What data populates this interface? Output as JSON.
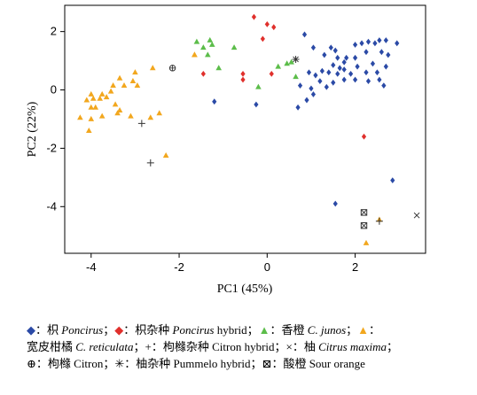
{
  "chart_data": {
    "type": "scatter",
    "xlabel": "PC1 (45%)",
    "ylabel": "PC2 (22%)",
    "xlim": [
      -4.6,
      3.6
    ],
    "ylim": [
      -5.6,
      2.9
    ],
    "xticks": [
      -4,
      -2,
      0,
      2
    ],
    "yticks": [
      -4,
      -2,
      0,
      2
    ],
    "xtick_labels": [
      "-4",
      "-2",
      "0",
      "2"
    ],
    "ytick_labels": [
      "-4",
      "-2",
      "0",
      "2"
    ],
    "grid": false,
    "series": [
      {
        "name": "枳 Poncirus",
        "marker": "diamond",
        "color": "#2b4aa6",
        "points": [
          [
            0.85,
            1.9
          ],
          [
            1.05,
            1.45
          ],
          [
            1.45,
            1.45
          ],
          [
            1.55,
            1.35
          ],
          [
            1.3,
            1.2
          ],
          [
            1.6,
            1.1
          ],
          [
            1.75,
            0.95
          ],
          [
            1.8,
            1.1
          ],
          [
            1.5,
            0.85
          ],
          [
            1.65,
            0.75
          ],
          [
            2.0,
            1.55
          ],
          [
            2.15,
            1.6
          ],
          [
            2.3,
            1.65
          ],
          [
            2.45,
            1.6
          ],
          [
            2.55,
            1.7
          ],
          [
            2.7,
            1.7
          ],
          [
            2.95,
            1.6
          ],
          [
            2.25,
            1.3
          ],
          [
            2.6,
            1.3
          ],
          [
            2.75,
            1.2
          ],
          [
            2.0,
            1.1
          ],
          [
            2.05,
            0.8
          ],
          [
            1.75,
            0.7
          ],
          [
            2.4,
            0.9
          ],
          [
            2.7,
            0.8
          ],
          [
            2.5,
            0.6
          ],
          [
            2.25,
            0.6
          ],
          [
            1.9,
            0.55
          ],
          [
            1.6,
            0.55
          ],
          [
            1.4,
            0.6
          ],
          [
            1.25,
            0.65
          ],
          [
            1.1,
            0.5
          ],
          [
            0.95,
            0.6
          ],
          [
            1.2,
            0.3
          ],
          [
            1.5,
            0.25
          ],
          [
            1.75,
            0.35
          ],
          [
            2.0,
            0.35
          ],
          [
            2.3,
            0.3
          ],
          [
            2.55,
            0.35
          ],
          [
            2.65,
            0.15
          ],
          [
            1.0,
            0.05
          ],
          [
            0.75,
            0.15
          ],
          [
            1.05,
            -0.15
          ],
          [
            0.9,
            -0.35
          ],
          [
            0.7,
            -0.6
          ],
          [
            1.35,
            0.1
          ],
          [
            -1.2,
            -0.4
          ],
          [
            -0.25,
            -0.5
          ],
          [
            2.85,
            -3.1
          ],
          [
            1.55,
            -3.9
          ]
        ]
      },
      {
        "name": "枳杂种 Poncirus hybrid",
        "marker": "diamond",
        "color": "#e0302c",
        "points": [
          [
            -0.3,
            2.5
          ],
          [
            0.0,
            2.25
          ],
          [
            0.15,
            2.15
          ],
          [
            -0.1,
            1.75
          ],
          [
            -1.45,
            0.55
          ],
          [
            -0.55,
            0.55
          ],
          [
            -0.55,
            0.35
          ],
          [
            0.1,
            0.55
          ],
          [
            2.2,
            -1.6
          ]
        ]
      },
      {
        "name": "香橙 C. junos",
        "marker": "triangle",
        "color": "#5cbd4a",
        "points": [
          [
            -1.6,
            1.65
          ],
          [
            -1.3,
            1.7
          ],
          [
            -1.25,
            1.55
          ],
          [
            -0.75,
            1.45
          ],
          [
            -1.45,
            1.45
          ],
          [
            -1.35,
            1.2
          ],
          [
            -1.1,
            0.75
          ],
          [
            0.45,
            0.9
          ],
          [
            0.55,
            0.95
          ],
          [
            0.25,
            0.8
          ],
          [
            -0.2,
            0.1
          ],
          [
            0.65,
            0.45
          ]
        ]
      },
      {
        "name": "宽皮柑橘 C. reticulata",
        "marker": "triangle",
        "color": "#f2a71e",
        "points": [
          [
            -2.6,
            0.75
          ],
          [
            -3.0,
            0.6
          ],
          [
            -3.05,
            0.3
          ],
          [
            -2.95,
            0.15
          ],
          [
            -3.35,
            0.4
          ],
          [
            -3.25,
            0.15
          ],
          [
            -3.5,
            0.15
          ],
          [
            -3.55,
            -0.05
          ],
          [
            -3.75,
            -0.15
          ],
          [
            -3.8,
            -0.3
          ],
          [
            -3.65,
            -0.25
          ],
          [
            -3.95,
            -0.3
          ],
          [
            -4.0,
            -0.15
          ],
          [
            -4.1,
            -0.35
          ],
          [
            -3.9,
            -0.6
          ],
          [
            -3.45,
            -0.5
          ],
          [
            -3.4,
            -0.8
          ],
          [
            -3.35,
            -0.7
          ],
          [
            -3.1,
            -0.9
          ],
          [
            -3.75,
            -0.9
          ],
          [
            -4.0,
            -0.6
          ],
          [
            -4.25,
            -0.95
          ],
          [
            -4.0,
            -1.0
          ],
          [
            -2.45,
            -0.8
          ],
          [
            -2.65,
            -0.95
          ],
          [
            -4.05,
            -1.4
          ],
          [
            -1.65,
            1.2
          ],
          [
            -1.65,
            1.2
          ],
          [
            -2.3,
            -2.25
          ],
          [
            2.25,
            -5.25
          ],
          [
            2.55,
            -4.45
          ]
        ]
      },
      {
        "name": "枸橼杂种 Citron hybrid",
        "marker": "plus",
        "color": "#333333",
        "points": [
          [
            -2.85,
            -1.15
          ],
          [
            -2.65,
            -2.5
          ],
          [
            2.55,
            -4.5
          ]
        ]
      },
      {
        "name": "柚 Citrus maxima",
        "marker": "cross",
        "color": "#333333",
        "points": [
          [
            3.4,
            -4.3
          ]
        ]
      },
      {
        "name": "枸橼 Citron",
        "marker": "circleplus",
        "color": "#333333",
        "points": [
          [
            -2.15,
            0.75
          ]
        ]
      },
      {
        "name": "柚杂种 Pummelo hybrid",
        "marker": "asterisk",
        "color": "#333333",
        "points": [
          [
            0.65,
            1.05
          ]
        ]
      },
      {
        "name": "酸橙 Sour orange",
        "marker": "squarecross",
        "color": "#333333",
        "points": [
          [
            2.2,
            -4.2
          ],
          [
            2.2,
            -4.65
          ]
        ]
      }
    ]
  },
  "legend": {
    "i1_sym": "◆",
    "i1_text": "：枳 ",
    "i1_italic": "Poncirus",
    "i1_sep": "；",
    "i2_sym": "◆",
    "i2_text": "：枳杂种 ",
    "i2_italic": "Poncirus",
    "i2_tail": " hybrid；",
    "i3_sym": "▲",
    "i3_text": "：香橙 ",
    "i3_italic": "C. junos",
    "i3_sep": "；",
    "i4_sym": "▲",
    "i4_text": "：",
    "i5_text": "宽皮柑橘 ",
    "i5_italic": "C. reticulata",
    "i5_sep": "；",
    "i6_text": "+：枸橼杂种 Citron hybrid；",
    "i7_text": "×：柚 ",
    "i7_italic": "Citrus maxima",
    "i7_sep": "；",
    "i8_text": "⊕：枸橼 Citron；",
    "i9_text": "✳：柚杂种 Pummelo hybrid；",
    "i10_text": "⊠：酸橙 Sour orange"
  }
}
